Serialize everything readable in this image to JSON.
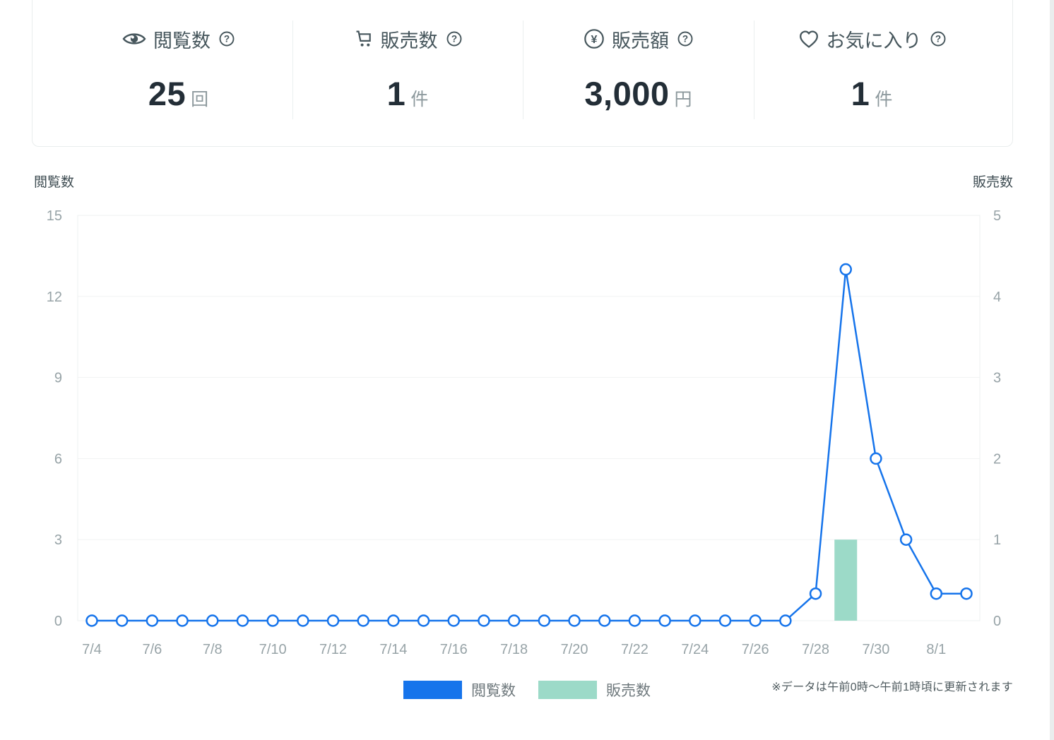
{
  "stats": {
    "help_symbol": "?",
    "yen_symbol": "¥",
    "items": [
      {
        "label": "閲覧数",
        "value": "25",
        "unit": "回",
        "icon": "eye-icon"
      },
      {
        "label": "販売数",
        "value": "1",
        "unit": "件",
        "icon": "cart-icon"
      },
      {
        "label": "販売額",
        "value": "3,000",
        "unit": "円",
        "icon": "yen-icon"
      },
      {
        "label": "お気に入り",
        "value": "1",
        "unit": "件",
        "icon": "heart-icon"
      }
    ]
  },
  "chart_data": {
    "type": "line",
    "title": "",
    "x": [
      "7/4",
      "7/5",
      "7/6",
      "7/7",
      "7/8",
      "7/9",
      "7/10",
      "7/11",
      "7/12",
      "7/13",
      "7/14",
      "7/15",
      "7/16",
      "7/17",
      "7/18",
      "7/19",
      "7/20",
      "7/21",
      "7/22",
      "7/23",
      "7/24",
      "7/25",
      "7/26",
      "7/27",
      "7/28",
      "7/29",
      "7/30",
      "7/31",
      "8/1",
      "8/2"
    ],
    "x_tick_labels": [
      "7/4",
      "7/6",
      "7/8",
      "7/10",
      "7/12",
      "7/14",
      "7/16",
      "7/18",
      "7/20",
      "7/22",
      "7/24",
      "7/26",
      "7/28",
      "7/30",
      "8/1"
    ],
    "series": [
      {
        "name": "閲覧数",
        "type": "line",
        "axis": "left",
        "color": "#1674EB",
        "values": [
          0,
          0,
          0,
          0,
          0,
          0,
          0,
          0,
          0,
          0,
          0,
          0,
          0,
          0,
          0,
          0,
          0,
          0,
          0,
          0,
          0,
          0,
          0,
          0,
          1,
          13,
          6,
          3,
          1,
          1
        ]
      },
      {
        "name": "販売数",
        "type": "bar",
        "axis": "right",
        "color": "#9CDAC8",
        "values": [
          0,
          0,
          0,
          0,
          0,
          0,
          0,
          0,
          0,
          0,
          0,
          0,
          0,
          0,
          0,
          0,
          0,
          0,
          0,
          0,
          0,
          0,
          0,
          0,
          0,
          1,
          0,
          0,
          0,
          0
        ]
      }
    ],
    "left_axis": {
      "label": "閲覧数",
      "ticks": [
        0,
        3,
        6,
        9,
        12,
        15
      ],
      "range": [
        0,
        15
      ]
    },
    "right_axis": {
      "label": "販売数",
      "ticks": [
        0,
        1,
        2,
        3,
        4,
        5
      ],
      "range": [
        0,
        5
      ]
    },
    "grid": "horizontal",
    "legend_position": "bottom"
  },
  "legend": {
    "items": [
      {
        "label": "閲覧数",
        "color": "#1674EB"
      },
      {
        "label": "販売数",
        "color": "#9CDAC8"
      }
    ]
  },
  "note": "※データは午前0時〜午前1時頃に更新されます",
  "colors": {
    "accent_blue": "#1674EB",
    "accent_teal": "#9CDAC8",
    "tick_text": "#97A3A7",
    "axis_title_text": "#3E4C52",
    "grid_line": "#F1F3F3",
    "plot_border": "#EDF0F0"
  }
}
